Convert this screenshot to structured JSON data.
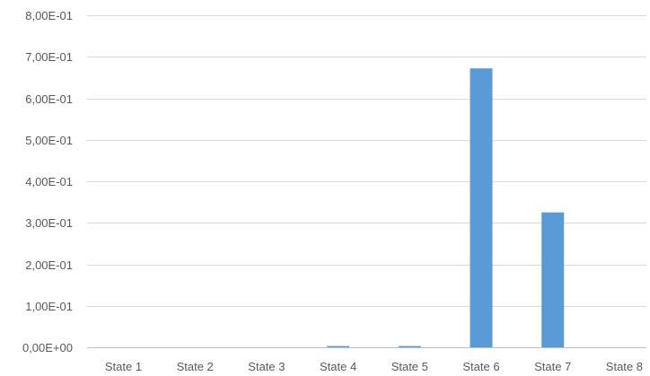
{
  "chart_data": {
    "type": "bar",
    "title": "",
    "xlabel": "",
    "ylabel": "",
    "categories": [
      "State 1",
      "State 2",
      "State 3",
      "State 4",
      "State 5",
      "State 6",
      "State 7",
      "State 8"
    ],
    "values": [
      0,
      0,
      0,
      0.003,
      0.003,
      0.672,
      0.325,
      0
    ],
    "ylim": [
      0,
      0.8
    ],
    "yticks": [
      0,
      0.1,
      0.2,
      0.3,
      0.4,
      0.5,
      0.6,
      0.7,
      0.8
    ],
    "ytick_labels": [
      "0,00E+00",
      "1,00E-01",
      "2,00E-01",
      "3,00E-01",
      "4,00E-01",
      "5,00E-01",
      "6,00E-01",
      "7,00E-01",
      "8,00E-01"
    ],
    "grid": true,
    "legend": "none",
    "bar_color": "#5b9bd5"
  }
}
